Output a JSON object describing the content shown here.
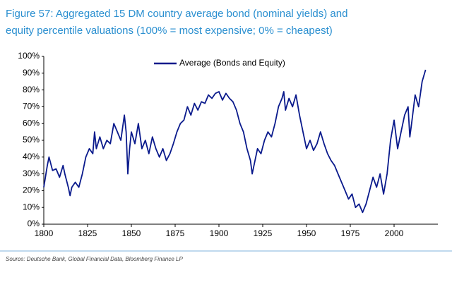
{
  "chart_data": {
    "type": "line",
    "title": "Figure 57: Aggregated 15 DM country average bond (nominal yields) and",
    "subtitle": "equity percentile valuations (100% = most expensive; 0% = cheapest)",
    "source": "Source: Deutsche Bank, Global Financial Data, Bloomberg Finance LP",
    "x": [
      1800,
      1802,
      1803,
      1805,
      1807,
      1809,
      1811,
      1812,
      1814,
      1815,
      1816,
      1818,
      1820,
      1822,
      1824,
      1826,
      1828,
      1829,
      1830,
      1832,
      1834,
      1836,
      1838,
      1840,
      1842,
      1844,
      1846,
      1847,
      1848,
      1849,
      1850,
      1852,
      1854,
      1856,
      1858,
      1860,
      1862,
      1864,
      1866,
      1868,
      1870,
      1872,
      1874,
      1876,
      1878,
      1880,
      1882,
      1884,
      1886,
      1888,
      1890,
      1892,
      1894,
      1896,
      1898,
      1900,
      1902,
      1904,
      1906,
      1908,
      1910,
      1912,
      1914,
      1916,
      1918,
      1919,
      1920,
      1922,
      1924,
      1926,
      1928,
      1930,
      1932,
      1934,
      1936,
      1937,
      1938,
      1940,
      1942,
      1944,
      1946,
      1948,
      1950,
      1952,
      1954,
      1956,
      1958,
      1960,
      1962,
      1964,
      1966,
      1968,
      1970,
      1972,
      1974,
      1976,
      1978,
      1980,
      1982,
      1984,
      1986,
      1988,
      1990,
      1992,
      1994,
      1996,
      1998,
      2000,
      2002,
      2004,
      2006,
      2008,
      2009,
      2010,
      2012,
      2014,
      2016,
      2018
    ],
    "series": [
      {
        "name": "Average (Bonds and Equity)",
        "color": "#0a1a8c",
        "values": [
          22,
          35,
          40,
          32,
          33,
          28,
          35,
          30,
          22,
          17,
          22,
          25,
          22,
          30,
          40,
          45,
          42,
          55,
          45,
          52,
          45,
          50,
          48,
          60,
          55,
          50,
          65,
          55,
          30,
          45,
          55,
          48,
          60,
          45,
          50,
          42,
          52,
          45,
          40,
          45,
          38,
          42,
          48,
          55,
          60,
          62,
          70,
          65,
          72,
          68,
          73,
          72,
          77,
          75,
          78,
          79,
          74,
          78,
          75,
          73,
          68,
          60,
          55,
          45,
          38,
          30,
          35,
          45,
          42,
          50,
          55,
          52,
          60,
          70,
          75,
          79,
          68,
          75,
          70,
          77,
          65,
          55,
          45,
          50,
          44,
          48,
          55,
          48,
          42,
          38,
          35,
          30,
          25,
          20,
          15,
          18,
          10,
          12,
          7,
          12,
          20,
          28,
          22,
          30,
          18,
          30,
          50,
          62,
          45,
          55,
          65,
          70,
          52,
          60,
          77,
          70,
          85,
          92
        ]
      }
    ],
    "xlim": [
      1800,
      2025
    ],
    "xticks": [
      1800,
      1825,
      1850,
      1875,
      1900,
      1925,
      1950,
      1975,
      2000
    ],
    "ylim": [
      0,
      100
    ],
    "yticks": [
      {
        "value": 0,
        "label": "0%"
      },
      {
        "value": 10,
        "label": "10%"
      },
      {
        "value": 20,
        "label": "20%"
      },
      {
        "value": 30,
        "label": "30%"
      },
      {
        "value": 40,
        "label": "40%"
      },
      {
        "value": 50,
        "label": "50%"
      },
      {
        "value": 60,
        "label": "60%"
      },
      {
        "value": 70,
        "label": "70%"
      },
      {
        "value": 80,
        "label": "80%"
      },
      {
        "value": 90,
        "label": "90%"
      },
      {
        "value": 100,
        "label": "100%"
      }
    ],
    "grid": false,
    "legend": "top"
  }
}
